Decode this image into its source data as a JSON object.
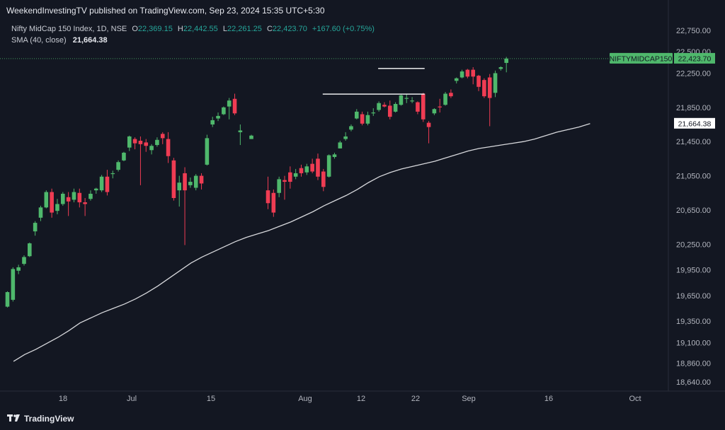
{
  "header": {
    "published": "WeekendInvestingTV published on TradingView.com, Sep 23, 2024 15:35 UTC+5:30"
  },
  "legend": {
    "symbol": "Nifty MidCap 150 Index, 1D, NSE",
    "o_label": "O",
    "o": "22,369.15",
    "h_label": "H",
    "h": "22,442.55",
    "l_label": "L",
    "l": "22,261.25",
    "c_label": "C",
    "c": "22,423.70",
    "change": "+167.60 (+0.75%)",
    "sma_label": "SMA (40, close)",
    "sma_value": "21,664.38"
  },
  "footer": {
    "brand": "TradingView"
  },
  "colors": {
    "up": "#4fb86c",
    "down": "#ef3c53",
    "bg": "#131722",
    "sma": "#d7d8dc",
    "label": "#4fb86c"
  },
  "chart_data": {
    "type": "candlestick",
    "ylim": [
      18490,
      22910
    ],
    "y_ticks": [
      "22,750.00",
      "22,500.00",
      "22,250.00",
      "21,850.00",
      "21,450.00",
      "21,050.00",
      "20,650.00",
      "20,250.00",
      "19,950.00",
      "19,650.00",
      "19,350.00",
      "19,100.00",
      "18,860.00",
      "18,640.00"
    ],
    "x_ticks": [
      "18",
      "Jul",
      "15",
      "Aug",
      "12",
      "22",
      "Sep",
      "16",
      "Oct"
    ],
    "price_labels": [
      {
        "name": "NIFTYMIDCAP150",
        "value": "22,423.70"
      },
      {
        "value": "21,664.38"
      }
    ],
    "candles": [
      [
        19520,
        19700,
        19510,
        19690
      ],
      [
        19600,
        19980,
        19580,
        19960
      ],
      [
        19940,
        20010,
        19900,
        19980
      ],
      [
        20020,
        20120,
        20000,
        20100
      ],
      [
        20110,
        20270,
        20100,
        20260
      ],
      [
        20400,
        20520,
        20350,
        20500
      ],
      [
        20560,
        20700,
        20520,
        20680
      ],
      [
        20680,
        20880,
        20670,
        20860
      ],
      [
        20860,
        20900,
        20560,
        20620
      ],
      [
        20640,
        20780,
        20600,
        20720
      ],
      [
        20720,
        20860,
        20700,
        20840
      ],
      [
        20800,
        20860,
        20580,
        20750
      ],
      [
        20770,
        20900,
        20740,
        20860
      ],
      [
        20850,
        20900,
        20680,
        20740
      ],
      [
        20740,
        20790,
        20580,
        20720
      ],
      [
        20780,
        20880,
        20760,
        20840
      ],
      [
        20880,
        20910,
        20840,
        20900
      ],
      [
        20880,
        21060,
        20860,
        21040
      ],
      [
        21040,
        21120,
        20820,
        20860
      ],
      [
        21080,
        21110,
        21020,
        21080
      ],
      [
        21120,
        21230,
        21100,
        21210
      ],
      [
        21230,
        21330,
        21220,
        21320
      ],
      [
        21380,
        21520,
        21340,
        21510
      ],
      [
        21480,
        21500,
        21360,
        21430
      ],
      [
        21460,
        21510,
        20940,
        21420
      ],
      [
        21440,
        21480,
        21330,
        21400
      ],
      [
        21350,
        21420,
        21300,
        21400
      ],
      [
        21410,
        21500,
        21390,
        21470
      ],
      [
        21540,
        21560,
        21420,
        21490
      ],
      [
        21480,
        21560,
        21200,
        21280
      ],
      [
        21230,
        21260,
        20760,
        20790
      ],
      [
        20880,
        21050,
        20690,
        20970
      ],
      [
        21080,
        21150,
        20240,
        20880
      ],
      [
        20940,
        21030,
        20910,
        20980
      ],
      [
        20910,
        21070,
        20880,
        21050
      ],
      [
        21050,
        21080,
        20890,
        20960
      ],
      [
        21180,
        21530,
        21170,
        21490
      ],
      [
        21650,
        21740,
        21620,
        21700
      ],
      [
        21720,
        21790,
        21690,
        21750
      ],
      [
        21770,
        21860,
        21760,
        21850
      ],
      [
        21860,
        21960,
        21710,
        21930
      ],
      [
        21950,
        22010,
        21760,
        21780
      ],
      [
        21560,
        21650,
        21410,
        21580
      ],
      null,
      [
        21480,
        21530,
        21480,
        21520
      ],
      null,
      null,
      [
        20880,
        21040,
        20660,
        20730
      ],
      [
        20850,
        20890,
        20570,
        20620
      ],
      [
        20850,
        21040,
        20800,
        21010
      ],
      [
        21000,
        21050,
        20770,
        20980
      ],
      [
        21090,
        21160,
        20900,
        20980
      ],
      [
        21040,
        21130,
        21010,
        21080
      ],
      [
        21140,
        21180,
        21040,
        21080
      ],
      [
        21090,
        21190,
        21060,
        21160
      ],
      [
        21190,
        21250,
        21080,
        21100
      ],
      [
        21250,
        21310,
        21000,
        21040
      ],
      [
        21100,
        21130,
        20870,
        20920
      ],
      [
        21040,
        21300,
        21030,
        21290
      ],
      [
        21270,
        21320,
        21250,
        21300
      ],
      [
        21370,
        21460,
        21370,
        21440
      ],
      [
        21480,
        21560,
        21460,
        21510
      ],
      [
        21590,
        21650,
        21570,
        21630
      ],
      [
        21720,
        21830,
        21710,
        21800
      ],
      [
        21770,
        21800,
        21640,
        21660
      ],
      [
        21660,
        21800,
        21640,
        21760
      ],
      [
        21780,
        21840,
        21750,
        21790
      ],
      [
        21820,
        21920,
        21800,
        21900
      ],
      [
        21880,
        21910,
        21850,
        21860
      ],
      [
        21870,
        21930,
        21710,
        21740
      ],
      [
        21800,
        21910,
        21790,
        21890
      ],
      [
        21880,
        22000,
        21870,
        21990
      ],
      [
        21960,
        22010,
        21900,
        21960
      ],
      [
        21920,
        21970,
        21900,
        21930
      ],
      [
        21910,
        21920,
        21770,
        21800
      ],
      [
        22010,
        22020,
        21680,
        21710
      ],
      [
        21670,
        21690,
        21430,
        21620
      ],
      [
        21780,
        21840,
        21760,
        21830
      ],
      [
        21860,
        21950,
        21790,
        21850
      ],
      [
        21880,
        22030,
        21870,
        22010
      ],
      [
        22020,
        22060,
        21960,
        21980
      ],
      [
        22160,
        22200,
        22130,
        22190
      ],
      [
        22200,
        22290,
        22190,
        22270
      ],
      [
        22290,
        22300,
        22190,
        22210
      ],
      [
        22290,
        22320,
        22120,
        22210
      ],
      [
        22220,
        22230,
        22040,
        22090
      ],
      [
        22170,
        22190,
        21960,
        21980
      ],
      [
        22200,
        22240,
        21630,
        21960
      ],
      [
        22020,
        22280,
        21970,
        22250
      ],
      [
        22300,
        22330,
        22280,
        22320
      ],
      [
        22370,
        22440,
        22260,
        22420
      ]
    ],
    "sma_points": [
      [
        18880,
        2
      ],
      [
        18960,
        4
      ],
      [
        19020,
        6
      ],
      [
        19090,
        8
      ],
      [
        19160,
        10
      ],
      [
        19240,
        12
      ],
      [
        19330,
        14
      ],
      [
        19390,
        16
      ],
      [
        19450,
        18
      ],
      [
        19500,
        20
      ],
      [
        19550,
        22
      ],
      [
        19610,
        24
      ],
      [
        19680,
        26
      ],
      [
        19760,
        28
      ],
      [
        19850,
        30
      ],
      [
        19940,
        32
      ],
      [
        20030,
        34
      ],
      [
        20100,
        36
      ],
      [
        20160,
        38
      ],
      [
        20220,
        40
      ],
      [
        20280,
        42
      ],
      [
        20330,
        44
      ],
      [
        20370,
        46
      ],
      [
        20410,
        48
      ],
      [
        20460,
        50
      ],
      [
        20510,
        52
      ],
      [
        20570,
        54
      ],
      [
        20630,
        56
      ],
      [
        20700,
        58
      ],
      [
        20760,
        60
      ],
      [
        20820,
        62
      ],
      [
        20890,
        64
      ],
      [
        20970,
        66
      ],
      [
        21040,
        68
      ],
      [
        21090,
        70
      ],
      [
        21130,
        72
      ],
      [
        21160,
        74
      ],
      [
        21190,
        76
      ],
      [
        21220,
        78
      ],
      [
        21260,
        80
      ],
      [
        21300,
        82
      ],
      [
        21340,
        84
      ],
      [
        21370,
        86
      ],
      [
        21390,
        88
      ],
      [
        21410,
        90
      ],
      [
        21430,
        92
      ],
      [
        21450,
        94
      ],
      [
        21480,
        96
      ],
      [
        21520,
        98
      ],
      [
        21560,
        100
      ],
      [
        21590,
        102
      ],
      [
        21620,
        104
      ],
      [
        21660,
        106
      ]
    ],
    "h_lines": [
      {
        "value": 22305,
        "from": 67,
        "to": 75
      },
      {
        "value": 22005,
        "from": 57,
        "to": 75
      }
    ]
  }
}
